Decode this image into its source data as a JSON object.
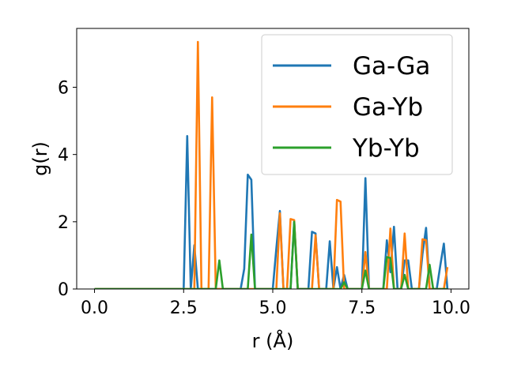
{
  "chart_data": {
    "type": "line",
    "xlabel": "r (Å)",
    "ylabel": "g(r)",
    "xlim": [
      -0.5,
      10.5
    ],
    "ylim": [
      0,
      7.75
    ],
    "xticks": [
      "0.0",
      "2.5",
      "5.0",
      "7.5",
      "10.0"
    ],
    "yticks": [
      "0",
      "2",
      "4",
      "6"
    ],
    "xtick_values": [
      0,
      2.5,
      5,
      7.5,
      10
    ],
    "ytick_values": [
      0,
      2,
      4,
      6
    ],
    "grid": false,
    "legend_position": "top-right",
    "series": [
      {
        "name": "Ga-Ga",
        "color": "#1f77b4",
        "points": [
          [
            0,
            0
          ],
          [
            2.5,
            0
          ],
          [
            2.6,
            4.55
          ],
          [
            2.7,
            0
          ],
          [
            2.8,
            1.3
          ],
          [
            2.9,
            0
          ],
          [
            4.1,
            0
          ],
          [
            4.2,
            0.6
          ],
          [
            4.3,
            3.4
          ],
          [
            4.4,
            3.25
          ],
          [
            4.5,
            0
          ],
          [
            5.0,
            0
          ],
          [
            5.1,
            1.2
          ],
          [
            5.2,
            2.32
          ],
          [
            5.3,
            0
          ],
          [
            5.5,
            0
          ],
          [
            5.6,
            2.0
          ],
          [
            5.7,
            0
          ],
          [
            6.0,
            0
          ],
          [
            6.1,
            1.7
          ],
          [
            6.2,
            1.65
          ],
          [
            6.3,
            0
          ],
          [
            6.5,
            0
          ],
          [
            6.6,
            1.42
          ],
          [
            6.7,
            0
          ],
          [
            6.8,
            0.65
          ],
          [
            6.9,
            0
          ],
          [
            7.0,
            0.42
          ],
          [
            7.1,
            0
          ],
          [
            7.5,
            0
          ],
          [
            7.6,
            3.3
          ],
          [
            7.7,
            0
          ],
          [
            8.1,
            0
          ],
          [
            8.2,
            1.45
          ],
          [
            8.3,
            0.5
          ],
          [
            8.4,
            1.85
          ],
          [
            8.5,
            0
          ],
          [
            8.6,
            0
          ],
          [
            8.7,
            0.85
          ],
          [
            8.8,
            0.85
          ],
          [
            8.9,
            0
          ],
          [
            9.1,
            0
          ],
          [
            9.2,
            1.05
          ],
          [
            9.3,
            1.82
          ],
          [
            9.4,
            0
          ],
          [
            9.6,
            0
          ],
          [
            9.7,
            0.7
          ],
          [
            9.8,
            1.35
          ],
          [
            9.9,
            0
          ]
        ]
      },
      {
        "name": "Ga-Yb",
        "color": "#ff7f0e",
        "points": [
          [
            0,
            0
          ],
          [
            2.8,
            0
          ],
          [
            2.9,
            7.35
          ],
          [
            3.0,
            0
          ],
          [
            3.2,
            0
          ],
          [
            3.3,
            5.7
          ],
          [
            3.4,
            0
          ],
          [
            5.1,
            0
          ],
          [
            5.2,
            2.25
          ],
          [
            5.3,
            0
          ],
          [
            5.4,
            0
          ],
          [
            5.5,
            2.08
          ],
          [
            5.6,
            2.05
          ],
          [
            5.7,
            0
          ],
          [
            6.1,
            0
          ],
          [
            6.2,
            1.6
          ],
          [
            6.3,
            0
          ],
          [
            6.7,
            0
          ],
          [
            6.8,
            2.65
          ],
          [
            6.9,
            2.6
          ],
          [
            7.0,
            0
          ],
          [
            7.5,
            0
          ],
          [
            7.6,
            1.1
          ],
          [
            7.7,
            0
          ],
          [
            8.2,
            0
          ],
          [
            8.3,
            1.8
          ],
          [
            8.4,
            0
          ],
          [
            8.6,
            0
          ],
          [
            8.7,
            1.65
          ],
          [
            8.8,
            0
          ],
          [
            9.1,
            0
          ],
          [
            9.2,
            1.48
          ],
          [
            9.3,
            1.45
          ],
          [
            9.4,
            0
          ],
          [
            9.8,
            0
          ],
          [
            9.9,
            0.65
          ]
        ]
      },
      {
        "name": "Yb-Yb",
        "color": "#2ca02c",
        "points": [
          [
            0,
            0
          ],
          [
            3.4,
            0
          ],
          [
            3.5,
            0.85
          ],
          [
            3.6,
            0
          ],
          [
            4.3,
            0
          ],
          [
            4.4,
            1.62
          ],
          [
            4.5,
            0
          ],
          [
            5.5,
            0
          ],
          [
            5.6,
            2.0
          ],
          [
            5.7,
            0
          ],
          [
            6.9,
            0
          ],
          [
            7.0,
            0.2
          ],
          [
            7.1,
            0
          ],
          [
            7.5,
            0
          ],
          [
            7.6,
            0.55
          ],
          [
            7.7,
            0
          ],
          [
            8.1,
            0
          ],
          [
            8.2,
            0.95
          ],
          [
            8.3,
            0.92
          ],
          [
            8.4,
            0
          ],
          [
            8.6,
            0
          ],
          [
            8.7,
            0.42
          ],
          [
            8.8,
            0
          ],
          [
            9.3,
            0
          ],
          [
            9.4,
            0.72
          ],
          [
            9.5,
            0
          ],
          [
            9.9,
            0
          ]
        ]
      }
    ]
  }
}
